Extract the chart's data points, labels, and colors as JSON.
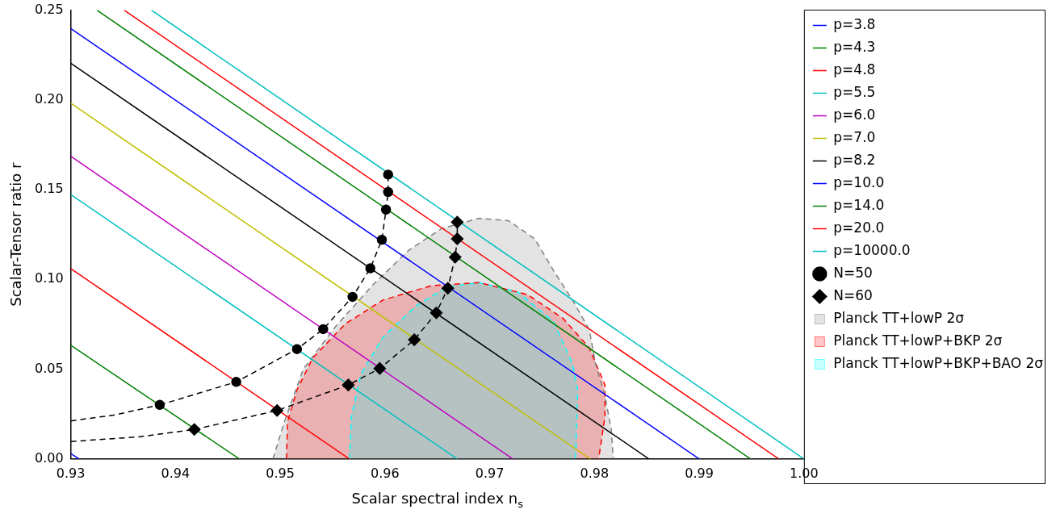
{
  "chart_data": {
    "type": "line",
    "xlabel": "Scalar spectral index n$_{s}$",
    "ylabel": "Scalar-Tensor ratio r",
    "xlim": [
      0.93,
      1.0
    ],
    "ylim": [
      0,
      0.25
    ],
    "xticks": [
      0.93,
      0.94,
      0.95,
      0.96,
      0.97,
      0.98,
      0.99,
      {
        "value": 1.0,
        "label": "1.00"
      }
    ],
    "yticks": [
      {
        "value": 0,
        "label": "0.00"
      },
      0.05,
      {
        "value": 0.1,
        "label": "0.10"
      },
      0.15,
      {
        "value": 0.2,
        "label": "0.20"
      },
      0.25
    ],
    "grid": false,
    "legend": "right",
    "marker": "none",
    "line_style": "solid",
    "series": [
      {
        "name": "p=3.8",
        "color": "#0000ff",
        "x": [
          0.93,
          0.9308
        ],
        "values": [
          0.003,
          0
        ]
      },
      {
        "name": "p=4.3",
        "color": "#008000",
        "x": [
          0.93,
          0.9461
        ],
        "values": [
          0.0633,
          0
        ]
      },
      {
        "name": "p=4.8",
        "color": "#ff0000",
        "x": [
          0.93,
          0.9566
        ],
        "values": [
          0.106,
          0
        ]
      },
      {
        "name": "p=5.5",
        "color": "#00bfbf",
        "x": [
          0.93,
          0.9669
        ],
        "values": [
          0.1473,
          0
        ]
      },
      {
        "name": "p=6.0",
        "color": "#bf00bf",
        "x": [
          0.93,
          0.9722
        ],
        "values": [
          0.1686,
          0
        ]
      },
      {
        "name": "p=7.0",
        "color": "#bfbf00",
        "x": [
          0.93,
          0.9796
        ],
        "values": [
          0.1982,
          0
        ]
      },
      {
        "name": "p=8.2",
        "color": "#000000",
        "x": [
          0.93,
          0.9852
        ],
        "values": [
          0.2204,
          0
        ]
      },
      {
        "name": "p=10.0",
        "color": "#0000ff",
        "x": [
          0.93,
          0.99
        ],
        "values": [
          0.2398,
          0
        ]
      },
      {
        "name": "p=14.0",
        "color": "#008000",
        "x": [
          0.9325,
          0.9949
        ],
        "values": [
          0.25,
          0
        ]
      },
      {
        "name": "p=20.0",
        "color": "#ff0000",
        "x": [
          0.9351,
          0.9976
        ],
        "values": [
          0.25,
          0
        ]
      },
      {
        "name": "p=10000.0",
        "color": "#00bfbf",
        "x": [
          0.9377,
          1.0
        ],
        "values": [
          0.25,
          0
        ]
      },
      {
        "name": "N=50",
        "color": "#000000",
        "marker": "circle",
        "line_style": "dashed",
        "x": [
          0.9385,
          0.9458,
          0.9516,
          0.9541,
          0.9569,
          0.9586,
          0.9597,
          0.9601,
          0.9603,
          0.9603
        ],
        "values": [
          0.0301,
          0.0429,
          0.0612,
          0.0723,
          0.0903,
          0.1062,
          0.1221,
          0.1389,
          0.1487,
          0.1584
        ]
      },
      {
        "name": "N=60",
        "color": "#000000",
        "marker": "diamond",
        "line_style": "dashed",
        "x": [
          0.9418,
          0.9497,
          0.9565,
          0.9595,
          0.9628,
          0.9649,
          0.966,
          0.9667,
          0.9669,
          0.9669
        ],
        "values": [
          0.0164,
          0.027,
          0.0412,
          0.0504,
          0.0664,
          0.0814,
          0.0951,
          0.1124,
          0.1226,
          0.1319
        ]
      },
      {
        "color": "#000000",
        "line_style": "dashed",
        "x": [
          0.93,
          0.9342,
          0.9385
        ],
        "values": [
          0.0212,
          0.0245,
          0.0301
        ]
      },
      {
        "color": "#000000",
        "line_style": "dashed",
        "x": [
          0.93,
          0.9365,
          0.9418
        ],
        "values": [
          0.0097,
          0.0123,
          0.0164
        ]
      },
      {
        "type": "area",
        "name": "Planck TT+lowP 2σ",
        "color": "#808080",
        "line_style": "dashed",
        "x": [
          0.9493,
          0.9504,
          0.9522,
          0.9553,
          0.9589,
          0.9623,
          0.9654,
          0.969,
          0.9718,
          0.9743,
          0.9761,
          0.9779,
          0.9795,
          0.9801,
          0.981,
          0.9816,
          0.9818
        ],
        "values": [
          0,
          0.0208,
          0.05,
          0.0739,
          0.0973,
          0.1164,
          0.1283,
          0.1341,
          0.1327,
          0.1226,
          0.1049,
          0.0885,
          0.0721,
          0.0531,
          0.0354,
          0.0164,
          0
        ]
      },
      {
        "type": "area",
        "name": "Planck TT+lowP+BKP 2σ",
        "color": "#ff0000",
        "line_style": "dashed",
        "x": [
          0.9506,
          0.9507,
          0.9516,
          0.9531,
          0.9562,
          0.9598,
          0.9644,
          0.969,
          0.9736,
          0.977,
          0.9795,
          0.981,
          0.981,
          0.9804
        ],
        "values": [
          0,
          0.0208,
          0.0385,
          0.0562,
          0.0752,
          0.0885,
          0.0965,
          0.0982,
          0.0916,
          0.0783,
          0.0619,
          0.0412,
          0.0235,
          0
        ]
      },
      {
        "type": "area",
        "name": "Planck TT+lowP+BKP+BAO 2σ",
        "color": "#00ffff",
        "line_style": "dashed",
        "x": [
          0.9566,
          0.9568,
          0.9577,
          0.9598,
          0.963,
          0.966,
          0.969,
          0.9727,
          0.9761,
          0.9779,
          0.9784,
          0.9782
        ],
        "values": [
          0,
          0.0235,
          0.0473,
          0.0677,
          0.0854,
          0.096,
          0.0982,
          0.0929,
          0.0765,
          0.0531,
          0.0385,
          0
        ]
      }
    ]
  }
}
